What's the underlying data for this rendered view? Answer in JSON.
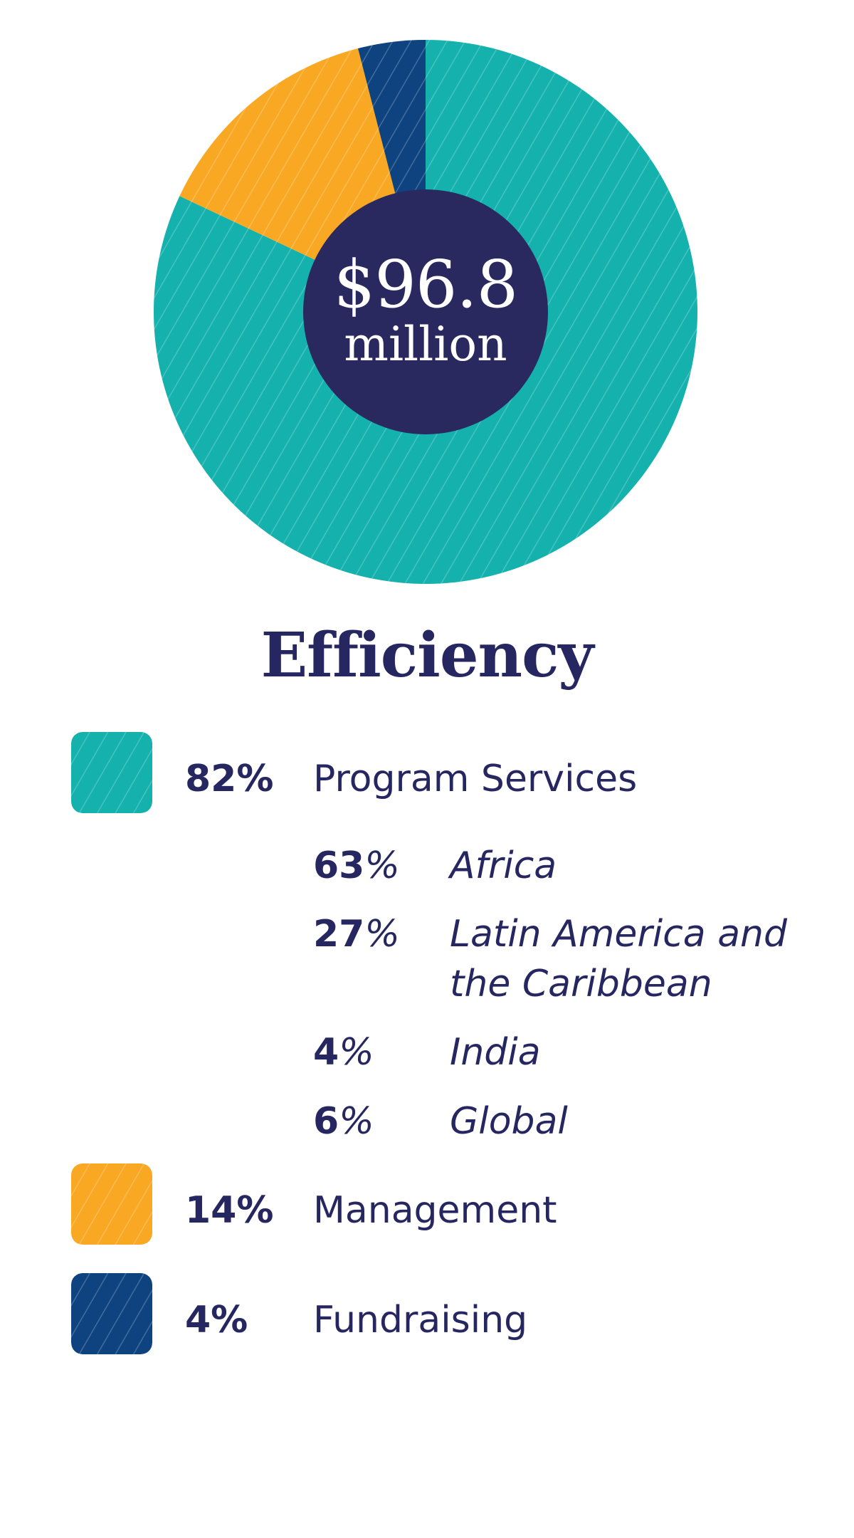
{
  "chart_data": {
    "type": "pie",
    "title": "Efficiency",
    "center_label": {
      "amount": "$96.8",
      "unit": "million"
    },
    "categories": [
      "Program Services",
      "Management",
      "Fundraising"
    ],
    "values": [
      82,
      14,
      4
    ],
    "value_labels": [
      "82%",
      "14%",
      "4%"
    ],
    "colors": [
      "#14B1AD",
      "#F9A824",
      "#0E437F"
    ],
    "hatched": true,
    "sub_breakdown": {
      "parent": "Program Services",
      "items": [
        {
          "label": "Africa",
          "value": 63,
          "pct_num": "63",
          "pct_sign": "%"
        },
        {
          "label_lines": [
            "Latin America and",
            "the Caribbean"
          ],
          "value": 27,
          "pct_num": "27",
          "pct_sign": "%"
        },
        {
          "label": "India",
          "value": 4,
          "pct_num": "4",
          "pct_sign": "%"
        },
        {
          "label": "Global",
          "value": 6,
          "pct_num": "6",
          "pct_sign": "%"
        }
      ]
    }
  },
  "theme": {
    "text_color": "#262660",
    "center_fill": "#29285F",
    "background": "#FFFFFF"
  }
}
